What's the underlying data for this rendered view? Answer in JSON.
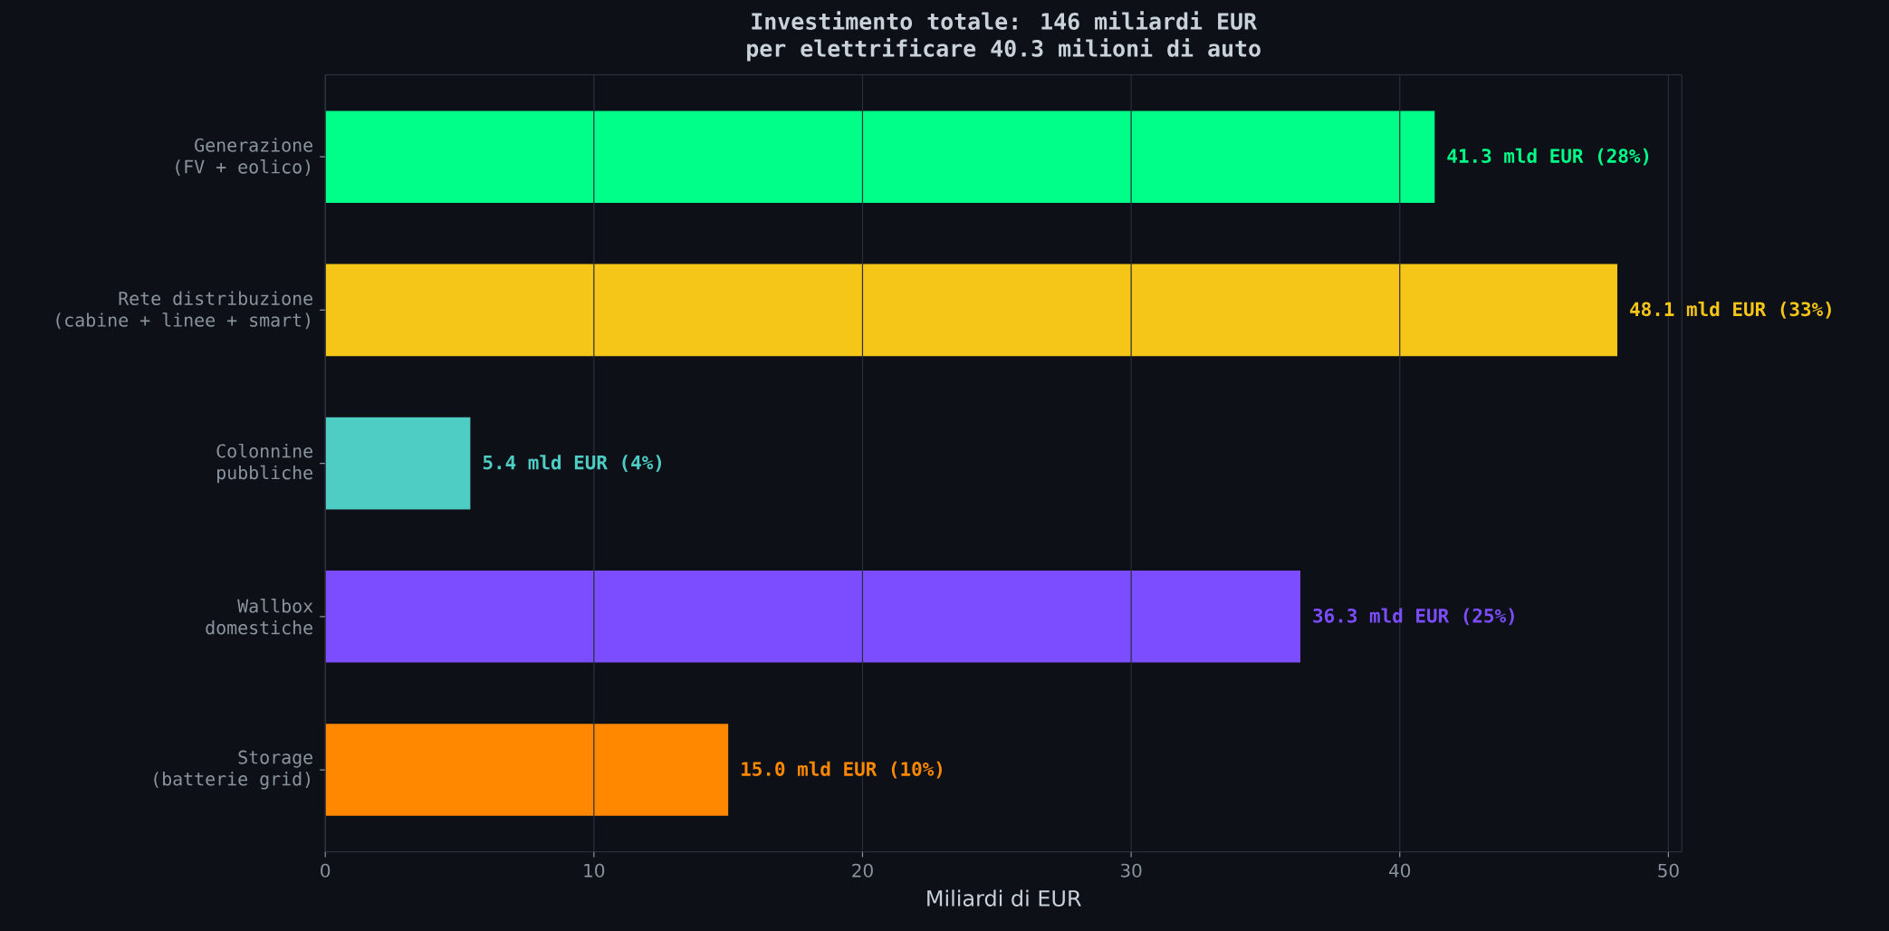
{
  "chart_data": {
    "type": "bar",
    "orientation": "horizontal",
    "title": "Investimento totale: 146 miliardi EUR",
    "subtitle": "per elettrificare 40.3 milioni di auto",
    "xlabel": "Miliardi di EUR",
    "categories": [
      "Generazione (FV + eolico)",
      "Rete distribuzione (cabine + linee + smart)",
      "Colonnine pubbliche",
      "Wallbox domestiche",
      "Storage (batterie grid)"
    ],
    "values": [
      41.3,
      48.1,
      5.4,
      36.3,
      15.0
    ],
    "colors": [
      "#00ff88",
      "#f5c518",
      "#4ecdc4",
      "#7c4dff",
      "#ff8800"
    ],
    "value_labels": [
      "41.3 mld EUR (28%)",
      "48.1 mld EUR (33%)",
      "5.4 mld EUR (4%)",
      "36.3 mld EUR (25%)",
      "15.0 mld EUR (10%)"
    ],
    "xlim": [
      0,
      50.5
    ],
    "xticks": [
      0,
      10,
      20,
      30,
      40,
      50
    ],
    "grid": "x"
  }
}
